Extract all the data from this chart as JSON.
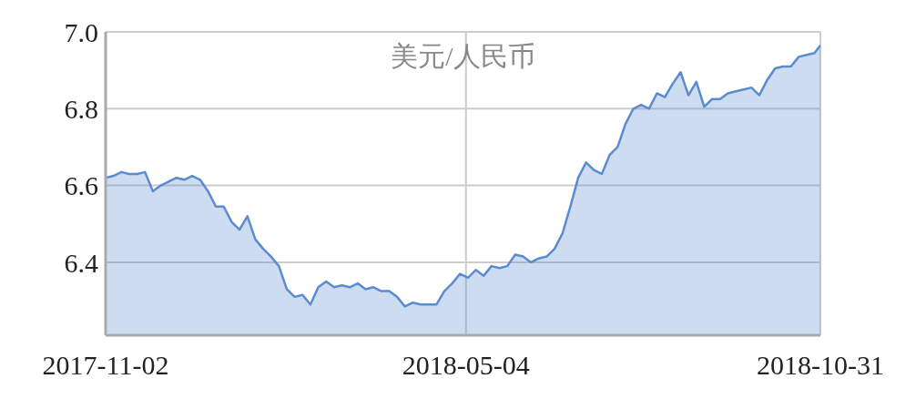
{
  "chart_data": {
    "type": "area",
    "title": "美元/人民币",
    "x": [
      "2017-11-02",
      "2017-11-06",
      "2017-11-10",
      "2017-11-14",
      "2017-11-18",
      "2017-11-22",
      "2017-11-26",
      "2017-11-30",
      "2017-12-04",
      "2017-12-08",
      "2017-12-12",
      "2017-12-16",
      "2017-12-20",
      "2017-12-24",
      "2017-12-28",
      "2018-01-01",
      "2018-01-05",
      "2018-01-09",
      "2018-01-13",
      "2018-01-17",
      "2018-01-21",
      "2018-01-25",
      "2018-01-29",
      "2018-02-02",
      "2018-02-06",
      "2018-02-10",
      "2018-02-14",
      "2018-02-18",
      "2018-02-22",
      "2018-02-26",
      "2018-03-02",
      "2018-03-06",
      "2018-03-10",
      "2018-03-14",
      "2018-03-18",
      "2018-03-22",
      "2018-03-26",
      "2018-03-30",
      "2018-04-03",
      "2018-04-07",
      "2018-04-11",
      "2018-04-15",
      "2018-04-19",
      "2018-04-23",
      "2018-04-27",
      "2018-05-01",
      "2018-05-05",
      "2018-05-09",
      "2018-05-13",
      "2018-05-17",
      "2018-05-21",
      "2018-05-25",
      "2018-05-29",
      "2018-06-02",
      "2018-06-06",
      "2018-06-10",
      "2018-06-14",
      "2018-06-18",
      "2018-06-22",
      "2018-06-26",
      "2018-06-30",
      "2018-07-04",
      "2018-07-08",
      "2018-07-12",
      "2018-07-16",
      "2018-07-20",
      "2018-07-24",
      "2018-07-28",
      "2018-08-01",
      "2018-08-05",
      "2018-08-09",
      "2018-08-13",
      "2018-08-17",
      "2018-08-21",
      "2018-08-25",
      "2018-08-29",
      "2018-09-02",
      "2018-09-06",
      "2018-09-10",
      "2018-09-14",
      "2018-09-18",
      "2018-09-22",
      "2018-09-26",
      "2018-09-30",
      "2018-10-04",
      "2018-10-08",
      "2018-10-12",
      "2018-10-16",
      "2018-10-20",
      "2018-10-24",
      "2018-10-28",
      "2018-10-31"
    ],
    "series": [
      {
        "color": "#5b8bd0",
        "values": [
          6.62,
          6.625,
          6.635,
          6.63,
          6.63,
          6.635,
          6.585,
          6.6,
          6.61,
          6.62,
          6.615,
          6.625,
          6.615,
          6.585,
          6.545,
          6.545,
          6.505,
          6.485,
          6.52,
          6.46,
          6.435,
          6.415,
          6.39,
          6.33,
          6.31,
          6.315,
          6.29,
          6.335,
          6.35,
          6.335,
          6.34,
          6.335,
          6.345,
          6.33,
          6.335,
          6.325,
          6.325,
          6.31,
          6.285,
          6.295,
          6.29,
          6.29,
          6.29,
          6.325,
          6.345,
          6.37,
          6.36,
          6.38,
          6.365,
          6.39,
          6.385,
          6.39,
          6.42,
          6.415,
          6.4,
          6.41,
          6.415,
          6.435,
          6.475,
          6.545,
          6.62,
          6.66,
          6.64,
          6.63,
          6.68,
          6.7,
          6.76,
          6.8,
          6.81,
          6.8,
          6.84,
          6.83,
          6.865,
          6.895,
          6.835,
          6.87,
          6.805,
          6.825,
          6.825,
          6.84,
          6.845,
          6.85,
          6.855,
          6.835,
          6.875,
          6.905,
          6.91,
          6.91,
          6.935,
          6.94,
          6.945,
          6.965
        ]
      }
    ],
    "xlim": [
      "2017-11-02",
      "2018-10-31"
    ],
    "xticks": [
      "2017-11-02",
      "2018-05-04",
      "2018-10-31"
    ],
    "ylim": [
      6.21,
      7.0
    ],
    "yticks": [
      6.4,
      6.6,
      6.8,
      {
        "value": 7.0,
        "label": "7.0"
      }
    ],
    "grid": true
  }
}
